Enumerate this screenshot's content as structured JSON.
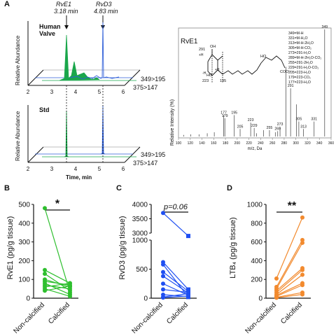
{
  "panel_labels": {
    "a": "A",
    "b": "B",
    "c": "C",
    "d": "D"
  },
  "chromatogram": {
    "peak_labels": [
      {
        "name": "RvE1",
        "time": "3.18 min"
      },
      {
        "name": "RvD3",
        "time": "4.83 min"
      }
    ],
    "top_label_1": "Human",
    "top_label_2": "Valve",
    "bottom_label": "Std",
    "ylabel": "Relative Abundance",
    "xlabel": "Time, min",
    "x_ticks": [
      "2",
      "3",
      "4",
      "5",
      "6"
    ],
    "transitions": [
      "349>195",
      "375>147"
    ],
    "colors": {
      "rve1": "#1aa64b",
      "rvd3": "#2f5fd8"
    }
  },
  "spectrum": {
    "title": "RvE1",
    "ylabel": "Relative Intensity (%)",
    "xlabel": "m/z, Da",
    "x_ticks": [
      "100",
      "120",
      "140",
      "160",
      "180",
      "200",
      "220",
      "240",
      "260",
      "280",
      "300",
      "320",
      "340",
      "360"
    ],
    "structure_labels": {
      "h1": "291",
      "h2": "+H",
      "h3": "-H",
      "h4": "223",
      "h5": "195",
      "h6": "HO",
      "h7": "OH",
      "h8": "HO",
      "h9": "COO⁻",
      "h10": "+H"
    },
    "fragment_list": [
      "349=M-H",
      "331=M-H₂O",
      "313=M-H-2H₂O",
      "305=M-H-CO₂",
      "273=291-H₂O",
      "289=M-H-2H₂O-CO₂",
      "255=291-2H₂O",
      "229=291-H₂O-CO₂",
      "205=223-H₂O",
      "179=223-CO₂",
      "177=223-H₂O"
    ],
    "peaks": [
      {
        "mz": 349,
        "rel": 100,
        "label": "349"
      },
      {
        "mz": 291,
        "rel": 45,
        "label": "291"
      },
      {
        "mz": 331,
        "rel": 14,
        "label": "331"
      },
      {
        "mz": 305,
        "rel": 14,
        "label": "305"
      },
      {
        "mz": 313,
        "rel": 7,
        "label": "313"
      },
      {
        "mz": 273,
        "rel": 9,
        "label": "273"
      },
      {
        "mz": 269,
        "rel": 5,
        "label": "269"
      },
      {
        "mz": 255,
        "rel": 6,
        "label": "255"
      },
      {
        "mz": 229,
        "rel": 8,
        "label": "229"
      },
      {
        "mz": 223,
        "rel": 13,
        "label": "223"
      },
      {
        "mz": 205,
        "rel": 7,
        "label": "205"
      },
      {
        "mz": 195,
        "rel": 20,
        "label": "195"
      },
      {
        "mz": 179,
        "rel": 17,
        "label": "179"
      },
      {
        "mz": 177,
        "rel": 20,
        "label": "177"
      },
      {
        "mz": 245,
        "rel": 6,
        "label": ""
      },
      {
        "mz": 283,
        "rel": 65,
        "label": ""
      },
      {
        "mz": 301,
        "rel": 30,
        "label": ""
      },
      {
        "mz": 265,
        "rel": 4,
        "label": ""
      },
      {
        "mz": 161,
        "rel": 4,
        "label": ""
      },
      {
        "mz": 149,
        "rel": 3,
        "label": ""
      },
      {
        "mz": 135,
        "rel": 2,
        "label": ""
      },
      {
        "mz": 121,
        "rel": 2,
        "label": ""
      },
      {
        "mz": 109,
        "rel": 1.5,
        "label": ""
      },
      {
        "mz": 233,
        "rel": 3,
        "label": ""
      }
    ]
  },
  "chart_data": [
    {
      "type": "scatter",
      "title": "",
      "significance": "*",
      "ylabel": "RvE1 (pg/g tissue)",
      "categories": [
        "Non-calcified",
        "Calcified"
      ],
      "ylim": [
        0,
        500
      ],
      "y_ticks": [
        "0",
        "100",
        "200",
        "300",
        "400",
        "500"
      ],
      "color": "#2ebf2e",
      "pairs": [
        [
          480,
          30
        ],
        [
          150,
          80
        ],
        [
          130,
          40
        ],
        [
          100,
          60
        ],
        [
          90,
          70
        ],
        [
          80,
          20
        ],
        [
          70,
          50
        ],
        [
          60,
          80
        ],
        [
          50,
          10
        ],
        [
          40,
          65
        ]
      ]
    },
    {
      "type": "scatter",
      "title": "",
      "significance": "p=0.06",
      "ylabel": "RvD3 (pg/g tissue)",
      "categories": [
        "Non-calcified",
        "Calcified"
      ],
      "ylim": [
        0,
        4000
      ],
      "axis_break": [
        1000,
        3000
      ],
      "y_ticks_lower": [
        "0",
        "500",
        "1000"
      ],
      "y_ticks_upper": [
        "3000",
        "3500",
        "4000"
      ],
      "color": "#1f4ff2",
      "pairs": [
        [
          3700,
          2900
        ],
        [
          620,
          150
        ],
        [
          580,
          20
        ],
        [
          450,
          120
        ],
        [
          380,
          90
        ],
        [
          250,
          50
        ],
        [
          150,
          100
        ],
        [
          60,
          30
        ],
        [
          20,
          80
        ],
        [
          10,
          40
        ]
      ]
    },
    {
      "type": "scatter",
      "title": "",
      "significance": "**",
      "ylabel": "LTB₄ (pg/g tissue)",
      "categories": [
        "Non-calcified",
        "Calcified"
      ],
      "ylim": [
        0,
        1000
      ],
      "y_ticks": [
        "0",
        "200",
        "400",
        "600",
        "800",
        "1000"
      ],
      "color": "#f28a2e",
      "pairs": [
        [
          210,
          860
        ],
        [
          120,
          620
        ],
        [
          100,
          590
        ],
        [
          80,
          320
        ],
        [
          60,
          300
        ],
        [
          40,
          250
        ],
        [
          30,
          160
        ],
        [
          20,
          140
        ],
        [
          10,
          60
        ],
        [
          5,
          40
        ]
      ]
    }
  ]
}
